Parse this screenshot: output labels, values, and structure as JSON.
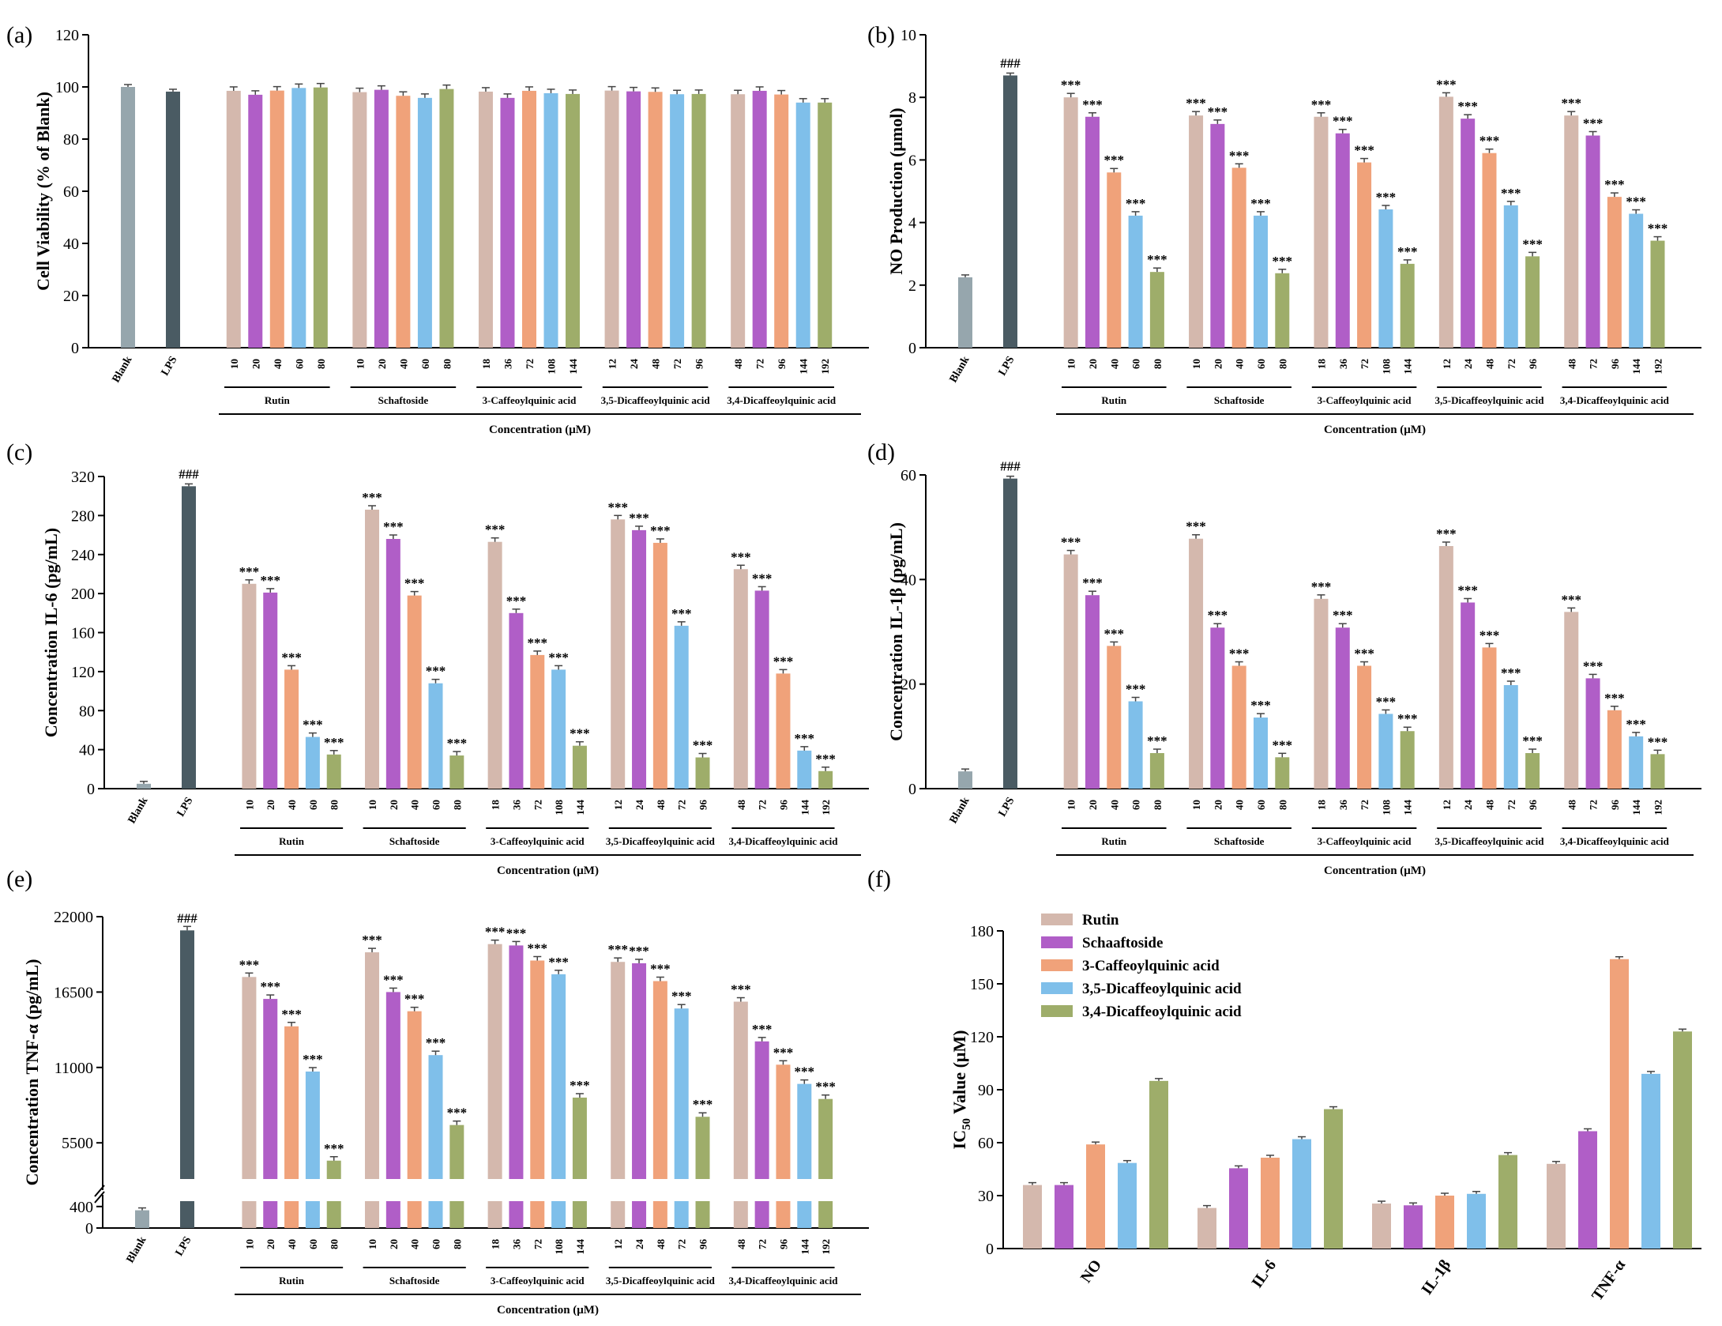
{
  "colors": {
    "Blank": "#96a6ad",
    "LPS": "#4a5b63",
    "c1": "#d4b8ad",
    "c2": "#b05ec7",
    "c3": "#f0a27a",
    "c4": "#7fbfea",
    "c5": "#9ead6a"
  },
  "chart_data": [
    {
      "panel": "(a)",
      "type": "bar",
      "ylabel": "Cell Viability (% of Blank)",
      "xlabel": "Concentration (μM)",
      "ylim": [
        0,
        120
      ],
      "yticks": [
        "0",
        "20",
        "40",
        "60",
        "80",
        "100",
        "120"
      ],
      "controls": [
        {
          "name": "Blank",
          "value": 100
        },
        {
          "name": "LPS",
          "value": 98.2
        }
      ],
      "groups": [
        {
          "name": "Rutin",
          "concentrations": [
            "10",
            "20",
            "40",
            "60",
            "80"
          ],
          "values": [
            98.5,
            97.0,
            98.6,
            99.6,
            99.8
          ],
          "sig": []
        },
        {
          "name": "Schaftoside",
          "concentrations": [
            "10",
            "20",
            "40",
            "60",
            "80"
          ],
          "values": [
            98.0,
            98.9,
            96.6,
            95.8,
            99.2
          ],
          "sig": []
        },
        {
          "name": "3-Caffeoylquinic acid",
          "concentrations": [
            "18",
            "36",
            "72",
            "108",
            "144"
          ],
          "values": [
            98.2,
            95.8,
            98.5,
            97.6,
            97.3
          ],
          "sig": []
        },
        {
          "name": "3,5-Dicaffeoylquinic acid",
          "concentrations": [
            "12",
            "24",
            "48",
            "72",
            "96"
          ],
          "values": [
            98.6,
            98.3,
            98.1,
            97.2,
            97.3
          ],
          "sig": []
        },
        {
          "name": "3,4-Dicaffeoylquinic acid",
          "concentrations": [
            "48",
            "72",
            "96",
            "144",
            "192"
          ],
          "values": [
            97.2,
            98.5,
            97.1,
            94.0,
            94.0
          ],
          "sig": []
        }
      ]
    },
    {
      "panel": "(b)",
      "type": "bar",
      "ylabel": "NO Production (μmol)",
      "xlabel": "Concentration (μM)",
      "ylim": [
        0,
        10
      ],
      "yticks": [
        "0",
        "2",
        "4",
        "6",
        "8",
        "10"
      ],
      "controls": [
        {
          "name": "Blank",
          "value": 2.25
        },
        {
          "name": "LPS",
          "value": 8.7,
          "sig": "###"
        }
      ],
      "groups": [
        {
          "name": "Rutin",
          "concentrations": [
            "10",
            "20",
            "40",
            "60",
            "80"
          ],
          "values": [
            8.0,
            7.38,
            5.6,
            4.22,
            2.42
          ],
          "sig": [
            "***",
            "***",
            "***",
            "***",
            "***"
          ]
        },
        {
          "name": "Schaftoside",
          "concentrations": [
            "10",
            "20",
            "40",
            "60",
            "80"
          ],
          "values": [
            7.42,
            7.15,
            5.75,
            4.22,
            2.38
          ],
          "sig": [
            "***",
            "***",
            "***",
            "***",
            "***"
          ]
        },
        {
          "name": "3-Caffeoylquinic acid",
          "concentrations": [
            "18",
            "36",
            "72",
            "108",
            "144"
          ],
          "values": [
            7.38,
            6.85,
            5.92,
            4.42,
            2.68
          ],
          "sig": [
            "***",
            "***",
            "***",
            "***",
            "***"
          ]
        },
        {
          "name": "3,5-Dicaffeoylquinic acid",
          "concentrations": [
            "12",
            "24",
            "48",
            "72",
            "96"
          ],
          "values": [
            8.02,
            7.32,
            6.22,
            4.55,
            2.92
          ],
          "sig": [
            "***",
            "***",
            "***",
            "***",
            "***"
          ]
        },
        {
          "name": "3,4-Dicaffeoylquinic acid",
          "concentrations": [
            "48",
            "72",
            "96",
            "144",
            "192"
          ],
          "values": [
            7.42,
            6.78,
            4.82,
            4.28,
            3.42
          ],
          "sig": [
            "***",
            "***",
            "***",
            "***",
            "***"
          ]
        }
      ]
    },
    {
      "panel": "(c)",
      "type": "bar",
      "ylabel": "Concentration IL-6 (pg/mL)",
      "xlabel": "Concentration (μM)",
      "ylim": [
        0,
        320
      ],
      "yticks": [
        "0",
        "40",
        "80",
        "120",
        "160",
        "200",
        "240",
        "280",
        "320"
      ],
      "controls": [
        {
          "name": "Blank",
          "value": 5
        },
        {
          "name": "LPS",
          "value": 310,
          "sig": "###"
        }
      ],
      "groups": [
        {
          "name": "Rutin",
          "concentrations": [
            "10",
            "20",
            "40",
            "60",
            "80"
          ],
          "values": [
            210,
            201,
            122,
            53,
            35
          ],
          "sig": [
            "***",
            "***",
            "***",
            "***",
            "***"
          ]
        },
        {
          "name": "Schaftoside",
          "concentrations": [
            "10",
            "20",
            "40",
            "60",
            "80"
          ],
          "values": [
            286,
            256,
            198,
            108,
            34
          ],
          "sig": [
            "***",
            "***",
            "***",
            "***",
            "***"
          ]
        },
        {
          "name": "3-Caffeoylquinic acid",
          "concentrations": [
            "18",
            "36",
            "72",
            "108",
            "144"
          ],
          "values": [
            253,
            180,
            137,
            122,
            44
          ],
          "sig": [
            "***",
            "***",
            "***",
            "***",
            "***"
          ]
        },
        {
          "name": "3,5-Dicaffeoylquinic acid",
          "concentrations": [
            "12",
            "24",
            "48",
            "72",
            "96"
          ],
          "values": [
            276,
            265,
            252,
            167,
            32
          ],
          "sig": [
            "***",
            "***",
            "***",
            "***",
            "***"
          ]
        },
        {
          "name": "3,4-Dicaffeoylquinic acid",
          "concentrations": [
            "48",
            "72",
            "96",
            "144",
            "192"
          ],
          "values": [
            225,
            203,
            118,
            39,
            18
          ],
          "sig": [
            "***",
            "***",
            "***",
            "***",
            "***"
          ]
        }
      ]
    },
    {
      "panel": "(d)",
      "type": "bar",
      "ylabel": "Concentration IL-1β (pg/mL)",
      "xlabel": "Concentration (μM)",
      "ylim": [
        0,
        60
      ],
      "yticks": [
        "0",
        "20",
        "40",
        "60"
      ],
      "controls": [
        {
          "name": "Blank",
          "value": 3.3
        },
        {
          "name": "LPS",
          "value": 59.3,
          "sig": "###"
        }
      ],
      "groups": [
        {
          "name": "Rutin",
          "concentrations": [
            "10",
            "20",
            "40",
            "60",
            "80"
          ],
          "values": [
            44.8,
            37.0,
            27.3,
            16.7,
            6.8
          ],
          "sig": [
            "***",
            "***",
            "***",
            "***",
            "***"
          ]
        },
        {
          "name": "Schaftoside",
          "concentrations": [
            "10",
            "20",
            "40",
            "60",
            "80"
          ],
          "values": [
            47.8,
            30.8,
            23.5,
            13.6,
            6.0
          ],
          "sig": [
            "***",
            "***",
            "***",
            "***",
            "***"
          ]
        },
        {
          "name": "3-Caffeoylquinic acid",
          "concentrations": [
            "18",
            "36",
            "72",
            "108",
            "144"
          ],
          "values": [
            36.3,
            30.8,
            23.5,
            14.3,
            11.0
          ],
          "sig": [
            "***",
            "***",
            "***",
            "***",
            "***"
          ]
        },
        {
          "name": "3,5-Dicaffeoylquinic acid",
          "concentrations": [
            "12",
            "24",
            "48",
            "72",
            "96"
          ],
          "values": [
            46.4,
            35.6,
            27.0,
            19.8,
            6.8
          ],
          "sig": [
            "***",
            "***",
            "***",
            "***",
            "***"
          ]
        },
        {
          "name": "3,4-Dicaffeoylquinic acid",
          "concentrations": [
            "48",
            "72",
            "96",
            "144",
            "192"
          ],
          "values": [
            33.8,
            21.1,
            15.0,
            10.0,
            6.6
          ],
          "sig": [
            "***",
            "***",
            "***",
            "***",
            "***"
          ]
        }
      ]
    },
    {
      "panel": "(e)",
      "type": "bar",
      "broken_axis": true,
      "ylabel": "Concentration TNF-α (pg/mL)",
      "xlabel": "Concentration (μM)",
      "ylim_lower": [
        0,
        500
      ],
      "ylim_upper": [
        2860,
        22000
      ],
      "yticks_lower": [
        "0",
        "400"
      ],
      "yticks_upper": [
        "5500",
        "11000",
        "16500",
        "22000"
      ],
      "controls": [
        {
          "name": "Blank",
          "value": 330
        },
        {
          "name": "LPS",
          "value": 21000,
          "sig": "###"
        }
      ],
      "groups": [
        {
          "name": "Rutin",
          "concentrations": [
            "10",
            "20",
            "40",
            "60",
            "80"
          ],
          "values": [
            17600,
            16000,
            14000,
            10700,
            4200
          ],
          "sig": [
            "***",
            "***",
            "***",
            "***",
            "***"
          ]
        },
        {
          "name": "Schaftoside",
          "concentrations": [
            "10",
            "20",
            "40",
            "60",
            "80"
          ],
          "values": [
            19400,
            16500,
            15100,
            11900,
            6800
          ],
          "sig": [
            "***",
            "***",
            "***",
            "***",
            "***"
          ]
        },
        {
          "name": "3-Caffeoylquinic acid",
          "concentrations": [
            "18",
            "36",
            "72",
            "108",
            "144"
          ],
          "values": [
            20000,
            19900,
            18800,
            17800,
            8800
          ],
          "sig": [
            "***",
            "***",
            "***",
            "***",
            "***"
          ]
        },
        {
          "name": "3,5-Dicaffeoylquinic acid",
          "concentrations": [
            "12",
            "24",
            "48",
            "72",
            "96"
          ],
          "values": [
            18700,
            18600,
            17300,
            15300,
            7400
          ],
          "sig": [
            "***",
            "***",
            "***",
            "***",
            "***"
          ]
        },
        {
          "name": "3,4-Dicaffeoylquinic acid",
          "concentrations": [
            "48",
            "72",
            "96",
            "144",
            "192"
          ],
          "values": [
            15800,
            12900,
            11200,
            9800,
            8700
          ],
          "sig": [
            "***",
            "***",
            "***",
            "***",
            "***"
          ]
        }
      ]
    },
    {
      "panel": "(f)",
      "type": "bar",
      "ylabel": "IC50 Value (μM)",
      "ylabel_main": "IC",
      "ylabel_sub": "50",
      "ylabel_rest": " Value (μM)",
      "categories": [
        "NO",
        "IL-6",
        "IL-1β",
        "TNF-α"
      ],
      "ylim": [
        0,
        180
      ],
      "yticks": [
        "0",
        "30",
        "60",
        "90",
        "120",
        "150",
        "180"
      ],
      "series": [
        {
          "name": "Rutin",
          "values": [
            36,
            23,
            25.5,
            48
          ]
        },
        {
          "name": "Schaaftoside",
          "values": [
            36,
            45.5,
            24.5,
            66.5
          ]
        },
        {
          "name": "3-Caffeoylquinic acid",
          "values": [
            59,
            51.5,
            30,
            164
          ]
        },
        {
          "name": "3,5-Dicaffeoylquinic acid",
          "values": [
            48.5,
            62,
            31,
            99
          ]
        },
        {
          "name": "3,4-Dicaffeoylquinic acid",
          "values": [
            95,
            79,
            53,
            123
          ]
        }
      ],
      "legend": "top-left"
    }
  ]
}
